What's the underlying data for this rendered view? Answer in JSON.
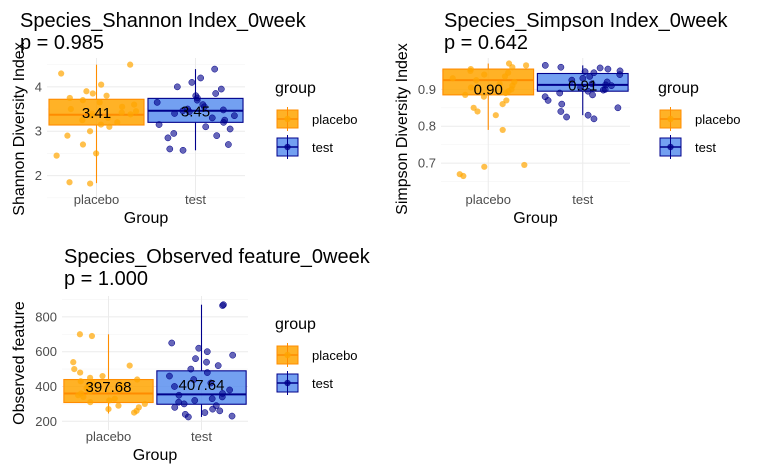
{
  "colors": {
    "placebo_fill": "#FFA500",
    "placebo_line": "#FF8C00",
    "test_fill": "#5B8FEF",
    "test_line": "#00008B",
    "grid": "#ebebeb"
  },
  "legend": {
    "title": "group",
    "entries": [
      "placebo",
      "test"
    ]
  },
  "chart_data": [
    {
      "type": "boxplot",
      "title_line1": "Species_Shannon Index_0week",
      "title_line2": " p = 0.985",
      "xlabel": "Group",
      "ylabel": "Shannon Diversity Index",
      "categories": [
        "placebo",
        "test"
      ],
      "ylim": [
        1.45,
        4.65
      ],
      "yticks": [
        2,
        3,
        4
      ],
      "ytick_labels": [
        "2",
        "3",
        "4"
      ],
      "boxes": [
        {
          "group": "placebo",
          "q1": 3.14,
          "median": 3.37,
          "q3": 3.72,
          "whisker_low": 1.83,
          "whisker_high": 4.5
        },
        {
          "group": "test",
          "q1": 3.2,
          "median": 3.46,
          "q3": 3.74,
          "whisker_low": 2.57,
          "whisker_high": 4.4
        }
      ],
      "means": [
        {
          "group": "placebo",
          "value": 3.41,
          "label": "3.41"
        },
        {
          "group": "test",
          "value": 3.45,
          "label": "3.45"
        }
      ],
      "points": {
        "placebo": [
          4.5,
          4.3,
          4.05,
          3.9,
          3.85,
          3.8,
          3.75,
          3.7,
          3.65,
          3.6,
          3.55,
          3.5,
          3.45,
          3.42,
          3.4,
          3.38,
          3.35,
          3.3,
          3.25,
          3.2,
          3.15,
          3.1,
          3.0,
          2.9,
          2.7,
          2.5,
          2.45,
          1.85,
          1.82
        ],
        "test": [
          4.4,
          4.2,
          4.1,
          4.0,
          3.95,
          3.85,
          3.8,
          3.75,
          3.7,
          3.65,
          3.6,
          3.55,
          3.5,
          3.48,
          3.46,
          3.44,
          3.4,
          3.35,
          3.3,
          3.25,
          3.2,
          3.15,
          3.1,
          3.05,
          2.95,
          2.9,
          2.85,
          2.7,
          2.6,
          2.57
        ]
      }
    },
    {
      "type": "boxplot",
      "title_line1": "Species_Simpson Index_0week",
      "title_line2": " p = 0.642",
      "xlabel": "Group",
      "ylabel": "Simpson Diversity Index",
      "categories": [
        "placebo",
        "test"
      ],
      "ylim": [
        0.6,
        0.985
      ],
      "yticks": [
        0.7,
        0.8,
        0.9
      ],
      "ytick_labels": [
        "0.7",
        "0.8",
        "0.9"
      ],
      "boxes": [
        {
          "group": "placebo",
          "q1": 0.885,
          "median": 0.925,
          "q3": 0.955,
          "whisker_low": 0.79,
          "whisker_high": 0.97
        },
        {
          "group": "test",
          "q1": 0.895,
          "median": 0.912,
          "q3": 0.943,
          "whisker_low": 0.83,
          "whisker_high": 0.965
        }
      ],
      "means": [
        {
          "group": "placebo",
          "value": 0.9,
          "label": "0.90"
        },
        {
          "group": "test",
          "value": 0.91,
          "label": "0.91"
        }
      ],
      "points": {
        "placebo": [
          0.97,
          0.965,
          0.96,
          0.955,
          0.95,
          0.945,
          0.94,
          0.935,
          0.93,
          0.925,
          0.92,
          0.915,
          0.91,
          0.905,
          0.9,
          0.895,
          0.89,
          0.885,
          0.88,
          0.87,
          0.86,
          0.85,
          0.84,
          0.83,
          0.79,
          0.695,
          0.69,
          0.67,
          0.665
        ],
        "test": [
          0.965,
          0.96,
          0.958,
          0.955,
          0.95,
          0.948,
          0.945,
          0.94,
          0.935,
          0.93,
          0.925,
          0.92,
          0.915,
          0.912,
          0.91,
          0.905,
          0.9,
          0.898,
          0.895,
          0.89,
          0.885,
          0.88,
          0.87,
          0.86,
          0.85,
          0.84,
          0.83,
          0.825,
          0.82
        ]
      }
    },
    {
      "type": "boxplot",
      "title_line1": "Species_Observed feature_0week",
      "title_line2": " p = 1.000",
      "xlabel": "Group",
      "ylabel": "Observed feature",
      "categories": [
        "placebo",
        "test"
      ],
      "ylim": [
        150,
        920
      ],
      "yticks": [
        200,
        400,
        600,
        800
      ],
      "ytick_labels": [
        "200",
        "400",
        "600",
        "800"
      ],
      "boxes": [
        {
          "group": "placebo",
          "q1": 308,
          "median": 360,
          "q3": 440,
          "whisker_low": 245,
          "whisker_high": 700
        },
        {
          "group": "test",
          "q1": 298,
          "median": 355,
          "q3": 490,
          "whisker_low": 225,
          "whisker_high": 870
        }
      ],
      "means": [
        {
          "group": "placebo",
          "value": 397.68,
          "label": "397.68"
        },
        {
          "group": "test",
          "value": 407.64,
          "label": "407.64"
        }
      ],
      "points": {
        "placebo": [
          700,
          690,
          540,
          520,
          500,
          480,
          460,
          450,
          440,
          430,
          420,
          410,
          400,
          390,
          380,
          370,
          360,
          350,
          340,
          330,
          320,
          310,
          300,
          290,
          280,
          270,
          260,
          250
        ],
        "test": [
          870,
          865,
          650,
          620,
          600,
          580,
          560,
          540,
          520,
          500,
          480,
          460,
          440,
          420,
          400,
          380,
          360,
          350,
          340,
          330,
          320,
          310,
          300,
          290,
          280,
          270,
          260,
          250,
          240,
          230,
          225
        ]
      }
    }
  ]
}
